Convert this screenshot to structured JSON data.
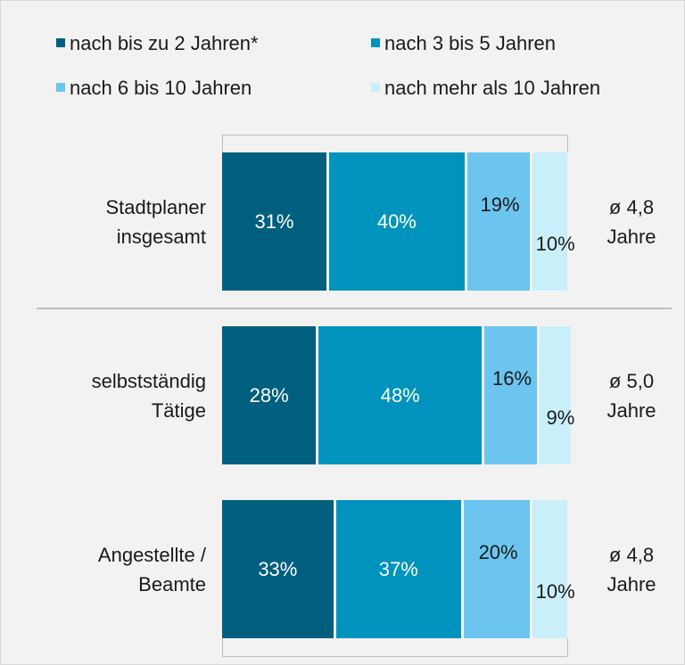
{
  "chart_data": {
    "type": "bar",
    "orientation": "horizontal",
    "stacked": true,
    "categories": [
      "Stadtplaner insgesamt",
      "selbstständig Tätige",
      "Angestellte / Beamte"
    ],
    "annotations": [
      "ø 4,8 Jahre",
      "ø 5,0 Jahre",
      "ø 4,8 Jahre"
    ],
    "xlim": [
      0,
      100
    ],
    "series": [
      {
        "name": "nach bis zu 2 Jahren*",
        "color": "#005f7f",
        "values": [
          31,
          28,
          33
        ],
        "value_labels": [
          "31%",
          "28%",
          "33%"
        ]
      },
      {
        "name": "nach 3 bis 5 Jahren",
        "color": "#0093bd",
        "values": [
          40,
          48,
          37
        ],
        "value_labels": [
          "40%",
          "48%",
          "37%"
        ]
      },
      {
        "name": "nach 6 bis 10 Jahren",
        "color": "#6cc5ef",
        "values": [
          19,
          16,
          20
        ],
        "value_labels": [
          "19%",
          "16%",
          "20%"
        ]
      },
      {
        "name": "nach mehr als 10 Jahren",
        "color": "#c9effa",
        "values": [
          10,
          9,
          10
        ],
        "value_labels": [
          "10%",
          "9%",
          "10%"
        ]
      }
    ]
  }
}
